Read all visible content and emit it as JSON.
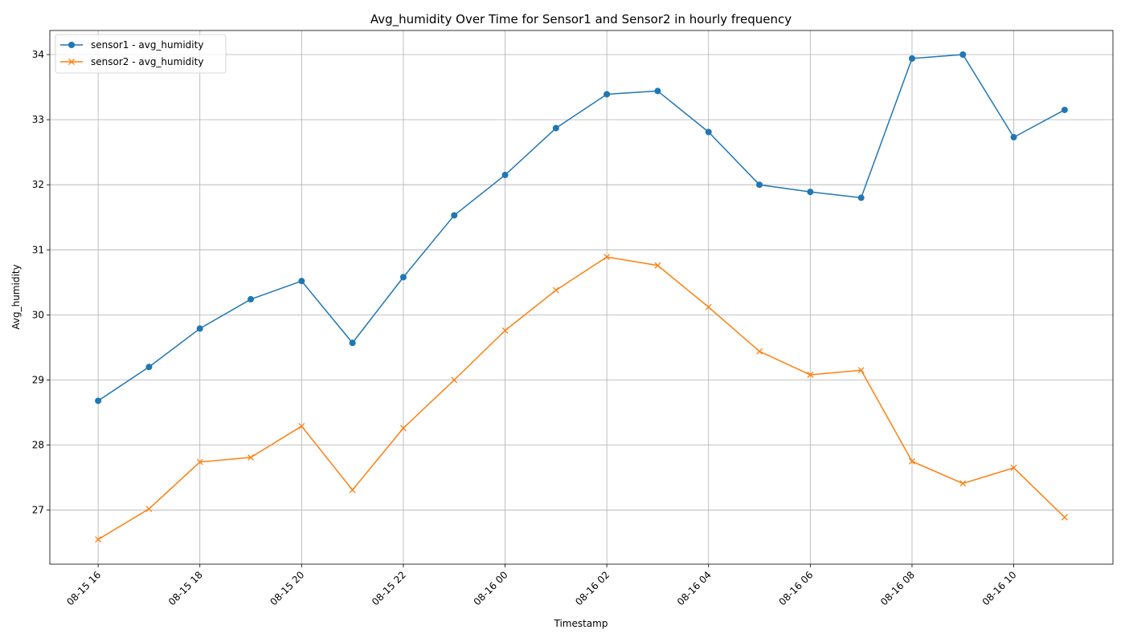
{
  "chart_data": {
    "type": "line",
    "title": "Avg_humidity Over Time for Sensor1 and Sensor2 in hourly frequency",
    "xlabel": "Timestamp",
    "ylabel": "Avg_humidity",
    "x": [
      "08-15 16",
      "08-15 17",
      "08-15 18",
      "08-15 19",
      "08-15 20",
      "08-15 21",
      "08-15 22",
      "08-15 23",
      "08-16 00",
      "08-16 01",
      "08-16 02",
      "08-16 03",
      "08-16 04",
      "08-16 05",
      "08-16 06",
      "08-16 07",
      "08-16 08",
      "08-16 09",
      "08-16 10",
      "08-16 11"
    ],
    "x_tick_labels": [
      "08-15 16",
      "08-15 18",
      "08-15 20",
      "08-15 22",
      "08-16 00",
      "08-16 02",
      "08-16 04",
      "08-16 06",
      "08-16 08",
      "08-16 10"
    ],
    "ylim": [
      26.17,
      34.37
    ],
    "y_ticks": [
      27,
      28,
      29,
      30,
      31,
      32,
      33,
      34
    ],
    "grid": true,
    "legend_position": "top-left",
    "series": [
      {
        "name": "sensor1 - avg_humidity",
        "color": "#1f77b4",
        "marker": "circle",
        "values": [
          28.68,
          29.2,
          29.79,
          30.24,
          30.52,
          29.57,
          30.58,
          31.53,
          32.15,
          32.87,
          33.39,
          33.44,
          32.81,
          32.0,
          31.89,
          31.8,
          33.94,
          34.0,
          32.73,
          33.15
        ]
      },
      {
        "name": "sensor2 - avg_humidity",
        "color": "#ff7f0e",
        "marker": "x",
        "values": [
          26.55,
          27.02,
          27.74,
          27.81,
          28.29,
          27.31,
          28.26,
          29.0,
          29.76,
          30.38,
          30.89,
          30.76,
          30.12,
          29.44,
          29.08,
          29.15,
          27.75,
          27.41,
          27.65,
          26.89
        ]
      }
    ]
  }
}
